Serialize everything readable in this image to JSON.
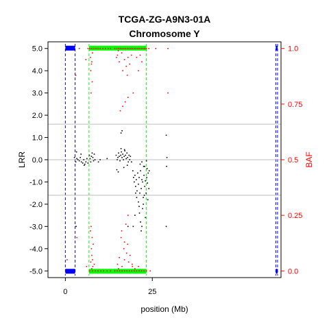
{
  "chart_data": {
    "type": "scatter",
    "title": "TCGA-ZG-A9N3-01A",
    "subtitle": "Chromosome Y",
    "xlabel": "position (Mb)",
    "ylabel_left": "LRR",
    "ylabel_right": "BAF",
    "xlim": [
      -5,
      62
    ],
    "ylim_left": [
      -5.3,
      5.3
    ],
    "ylim_right": [
      -0.03,
      1.03
    ],
    "x_ticks": [
      0,
      25
    ],
    "y_ticks_left": [
      5.0,
      4.0,
      3.0,
      2.0,
      1.0,
      0.0,
      -1.0,
      -2.0,
      -3.0,
      -4.0,
      -5.0
    ],
    "y_ticks_left_labels": [
      "5.0",
      "4.0",
      "3.0",
      "2.0",
      "1.0",
      "0.0",
      "-1.0",
      "-2.0",
      "-3.0",
      "-4.0",
      "-5.0"
    ],
    "y_ticks_right": [
      1.0,
      0.75,
      0.5,
      0.25,
      0.0
    ],
    "y_ticks_right_labels": [
      "1.0",
      "0.75",
      "0.5",
      "0.25",
      "0.0"
    ],
    "hlines_baf": [
      0.66,
      0.34
    ],
    "hline_lrr": 0.0,
    "regions": [
      {
        "kind": "blue",
        "start": 0.0,
        "end": 2.8,
        "color": "#0000ff"
      },
      {
        "kind": "green",
        "start": 6.8,
        "end": 23.3,
        "color": "#00ff00"
      },
      {
        "kind": "blue",
        "start": 60.5,
        "end": 61.0,
        "color": "#0000ff"
      }
    ],
    "colors": {
      "lrr": "#000000",
      "baf": "#ff0000",
      "grid": "#bebebe",
      "right_axis": "#ff0000"
    },
    "series": [
      {
        "kind": "lrr",
        "points": [
          [
            2.6,
            0.1
          ],
          [
            3.0,
            -0.1
          ],
          [
            3.3,
            0.05
          ],
          [
            3.6,
            0.0
          ],
          [
            4.0,
            -0.05
          ],
          [
            4.3,
            0.1
          ],
          [
            4.6,
            -0.1
          ],
          [
            5.0,
            -0.15
          ],
          [
            5.3,
            0.0
          ],
          [
            5.6,
            -0.2
          ],
          [
            5.9,
            -0.1
          ],
          [
            6.2,
            0.05
          ],
          [
            6.5,
            -0.15
          ],
          [
            6.9,
            0.2
          ],
          [
            7.1,
            0.05
          ],
          [
            7.3,
            -0.1
          ],
          [
            7.5,
            0.15
          ],
          [
            7.7,
            0.3
          ],
          [
            7.9,
            0.1
          ],
          [
            8.1,
            -0.05
          ],
          [
            8.3,
            0.25
          ],
          [
            8.5,
            0.0
          ],
          [
            3.2,
            0.35
          ],
          [
            4.5,
            0.25
          ],
          [
            5.4,
            -0.25
          ],
          [
            14.6,
            0.2
          ],
          [
            14.9,
            0.0
          ],
          [
            15.1,
            0.1
          ],
          [
            15.3,
            0.3
          ],
          [
            15.5,
            0.15
          ],
          [
            15.7,
            -0.05
          ],
          [
            15.9,
            0.2
          ],
          [
            16.1,
            0.35
          ],
          [
            16.3,
            0.1
          ],
          [
            16.5,
            0.25
          ],
          [
            16.7,
            0.0
          ],
          [
            16.9,
            0.15
          ],
          [
            17.1,
            0.4
          ],
          [
            17.3,
            0.2
          ],
          [
            17.5,
            0.05
          ],
          [
            17.7,
            0.3
          ],
          [
            17.9,
            0.1
          ],
          [
            18.1,
            -0.1
          ],
          [
            18.3,
            0.2
          ],
          [
            18.5,
            0.0
          ],
          [
            18.7,
            0.15
          ],
          [
            19.0,
            -0.1
          ],
          [
            15.2,
            -0.55
          ],
          [
            14.8,
            -0.45
          ],
          [
            16.8,
            -0.35
          ],
          [
            17.8,
            -0.25
          ],
          [
            16.0,
            0.5
          ],
          [
            17.0,
            0.45
          ],
          [
            19.4,
            -0.5
          ],
          [
            19.6,
            -0.8
          ],
          [
            19.8,
            -1.0
          ],
          [
            20.0,
            -0.7
          ],
          [
            20.2,
            -1.2
          ],
          [
            20.4,
            -0.9
          ],
          [
            20.6,
            -1.4
          ],
          [
            20.8,
            -0.6
          ],
          [
            21.0,
            -1.1
          ],
          [
            21.2,
            -0.8
          ],
          [
            21.4,
            -1.5
          ],
          [
            21.6,
            -0.5
          ],
          [
            21.8,
            -1.3
          ],
          [
            22.0,
            -0.9
          ],
          [
            22.2,
            -1.0
          ],
          [
            22.4,
            -1.7
          ],
          [
            22.6,
            -0.7
          ],
          [
            22.8,
            -1.2
          ],
          [
            23.0,
            -0.95
          ],
          [
            23.2,
            -1.5
          ],
          [
            23.4,
            -0.8
          ],
          [
            23.6,
            -1.05
          ],
          [
            23.8,
            -0.6
          ],
          [
            24.0,
            -1.3
          ],
          [
            21.5,
            -0.2
          ],
          [
            22.5,
            -0.3
          ],
          [
            23.5,
            -0.4
          ],
          [
            22.0,
            -0.1
          ],
          [
            21.0,
            -1.9
          ],
          [
            21.3,
            -2.4
          ],
          [
            21.6,
            -2.8
          ],
          [
            22.0,
            -3.0
          ],
          [
            22.2,
            -2.2
          ],
          [
            23.0,
            -2.6
          ],
          [
            21.8,
            -3.2
          ],
          [
            22.4,
            -2.0
          ],
          [
            20.5,
            -1.7
          ],
          [
            23.7,
            -1.8
          ],
          [
            22.7,
            -1.6
          ],
          [
            21.2,
            -2.1
          ],
          [
            19.5,
            -3.0
          ],
          [
            20.0,
            -2.5
          ],
          [
            20.2,
            -1.5
          ],
          [
            22.8,
            -0.3
          ],
          [
            23.3,
            -0.05
          ],
          [
            24.1,
            -0.5
          ],
          [
            16.0,
            1.2
          ],
          [
            16.3,
            1.3
          ],
          [
            18.0,
            -3.0
          ],
          [
            3.1,
            -3.0
          ],
          [
            29.0,
            1.1
          ],
          [
            29.1,
            -0.3
          ],
          [
            29.0,
            -3.0
          ],
          [
            29.2,
            0.1
          ],
          [
            10.0,
            0.0
          ],
          [
            12.0,
            0.05
          ],
          [
            9.5,
            -0.1
          ]
        ]
      },
      {
        "kind": "baf",
        "points": [
          [
            7.0,
            1.0
          ],
          [
            7.6,
            1.0
          ],
          [
            8.2,
            1.0
          ],
          [
            8.8,
            1.0
          ],
          [
            9.4,
            1.0
          ],
          [
            10.0,
            1.0
          ],
          [
            10.8,
            1.0
          ],
          [
            11.5,
            1.0
          ],
          [
            12.3,
            1.0
          ],
          [
            13.0,
            1.0
          ],
          [
            14.2,
            1.0
          ],
          [
            14.8,
            1.0
          ],
          [
            15.3,
            1.0
          ],
          [
            15.8,
            1.0
          ],
          [
            16.3,
            1.0
          ],
          [
            16.8,
            1.0
          ],
          [
            17.3,
            1.0
          ],
          [
            17.8,
            1.0
          ],
          [
            18.3,
            1.0
          ],
          [
            18.8,
            1.0
          ],
          [
            19.3,
            1.0
          ],
          [
            19.8,
            1.0
          ],
          [
            20.3,
            1.0
          ],
          [
            20.8,
            1.0
          ],
          [
            21.3,
            1.0
          ],
          [
            21.8,
            1.0
          ],
          [
            22.3,
            1.0
          ],
          [
            22.8,
            1.0
          ],
          [
            23.3,
            1.0
          ],
          [
            24.0,
            1.0
          ],
          [
            26.0,
            1.0
          ],
          [
            29.5,
            1.0
          ],
          [
            7.0,
            0.0
          ],
          [
            7.8,
            0.0
          ],
          [
            8.6,
            0.0
          ],
          [
            9.4,
            0.0
          ],
          [
            10.2,
            0.0
          ],
          [
            11.0,
            0.0
          ],
          [
            12.0,
            0.0
          ],
          [
            13.0,
            0.0
          ],
          [
            14.2,
            0.0
          ],
          [
            14.9,
            0.0
          ],
          [
            15.6,
            0.0
          ],
          [
            16.3,
            0.0
          ],
          [
            17.0,
            0.0
          ],
          [
            17.7,
            0.0
          ],
          [
            18.4,
            0.0
          ],
          [
            19.1,
            0.0
          ],
          [
            19.8,
            0.0
          ],
          [
            20.5,
            0.0
          ],
          [
            21.2,
            0.0
          ],
          [
            21.9,
            0.0
          ],
          [
            22.6,
            0.0
          ],
          [
            23.3,
            0.0
          ],
          [
            24.4,
            0.0
          ],
          [
            15.0,
            0.97
          ],
          [
            15.5,
            0.94
          ],
          [
            16.2,
            0.98
          ],
          [
            17.0,
            0.95
          ],
          [
            17.5,
            0.92
          ],
          [
            18.0,
            0.96
          ],
          [
            16.5,
            0.9
          ],
          [
            17.8,
            0.88
          ],
          [
            18.5,
            0.93
          ],
          [
            19.0,
            0.97
          ],
          [
            15.2,
            0.99
          ],
          [
            14.7,
            0.96
          ],
          [
            17.2,
            0.76
          ],
          [
            18.0,
            0.78
          ],
          [
            16.5,
            0.74
          ],
          [
            15.8,
            0.72
          ],
          [
            19.5,
            0.8
          ],
          [
            21.5,
            0.97
          ],
          [
            21.0,
            0.9
          ],
          [
            22.0,
            0.94
          ],
          [
            20.5,
            0.96
          ],
          [
            15.0,
            0.03
          ],
          [
            15.5,
            0.06
          ],
          [
            16.3,
            0.02
          ],
          [
            17.0,
            0.05
          ],
          [
            17.6,
            0.08
          ],
          [
            18.2,
            0.04
          ],
          [
            16.8,
            0.1
          ],
          [
            17.9,
            0.12
          ],
          [
            18.6,
            0.07
          ],
          [
            19.2,
            0.03
          ],
          [
            15.3,
            0.01
          ],
          [
            16.0,
            0.15
          ],
          [
            17.4,
            0.21
          ],
          [
            18.0,
            0.25
          ],
          [
            16.2,
            0.18
          ],
          [
            17.0,
            0.13
          ],
          [
            19.3,
            0.02
          ],
          [
            20.0,
            0.01
          ],
          [
            21.0,
            0.02
          ],
          [
            7.4,
            0.2
          ],
          [
            7.7,
            0.15
          ],
          [
            7.5,
            0.1
          ],
          [
            7.8,
            0.05
          ],
          [
            7.3,
            0.04
          ],
          [
            7.6,
            0.07
          ],
          [
            7.9,
            0.02
          ],
          [
            8.0,
            0.12
          ],
          [
            7.2,
            0.18
          ],
          [
            7.6,
            0.01
          ],
          [
            8.3,
            0.03
          ],
          [
            7.2,
            0.96
          ],
          [
            7.5,
            0.93
          ],
          [
            7.3,
            0.9
          ],
          [
            7.7,
            0.85
          ],
          [
            7.4,
            0.8
          ],
          [
            7.6,
            0.94
          ],
          [
            7.8,
            0.98
          ],
          [
            3.0,
            0.88
          ],
          [
            3.3,
            0.15
          ],
          [
            0.5,
            0.05
          ],
          [
            6.1,
            0.02
          ],
          [
            5.9,
            0.95
          ],
          [
            4.0,
            1.0
          ],
          [
            6.5,
            1.0
          ],
          [
            29.5,
            0.8
          ]
        ]
      }
    ]
  }
}
